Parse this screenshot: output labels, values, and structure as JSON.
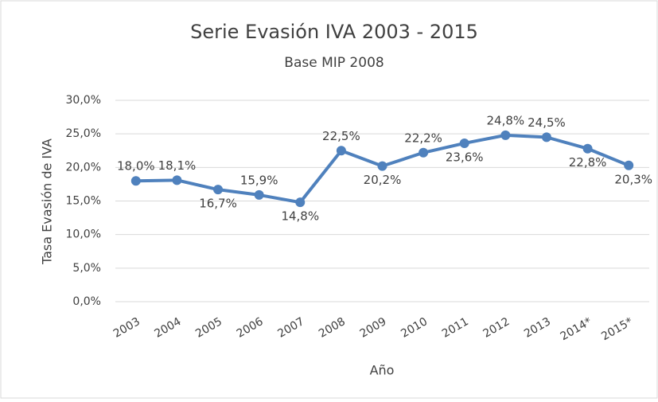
{
  "chart_data": {
    "type": "line",
    "title": "Serie Evasión IVA 2003 - 2015",
    "subtitle": "Base MIP 2008",
    "x_label": "Año",
    "y_label": "Tasa Evasión de IVA",
    "categories": [
      "2003",
      "2004",
      "2005",
      "2006",
      "2007",
      "2008",
      "2009",
      "2010",
      "2011",
      "2012",
      "2013",
      "2014*",
      "2015*"
    ],
    "series": [
      {
        "name": "Tasa Evasión de IVA",
        "color": "#4f81bd",
        "values": [
          18.0,
          18.1,
          16.7,
          15.9,
          14.8,
          22.5,
          20.2,
          22.2,
          23.6,
          24.8,
          24.5,
          22.8,
          20.3
        ],
        "value_labels": [
          "18,0%",
          "18,1%",
          "16,7%",
          "15,9%",
          "14,8%",
          "22,5%",
          "20,2%",
          "22,2%",
          "23,6%",
          "24,8%",
          "24,5%",
          "22,8%",
          "20,3%"
        ]
      }
    ],
    "ylim": [
      0,
      30
    ],
    "yticks": [
      {
        "value": 0,
        "label": "0,0%"
      },
      {
        "value": 5,
        "label": "5,0%"
      },
      {
        "value": 10,
        "label": "10,0%"
      },
      {
        "value": 15,
        "label": "15,0%"
      },
      {
        "value": 20,
        "label": "20,0%"
      },
      {
        "value": 25,
        "label": "25,0%"
      },
      {
        "value": 30,
        "label": "30,0%"
      }
    ],
    "grid": true
  }
}
